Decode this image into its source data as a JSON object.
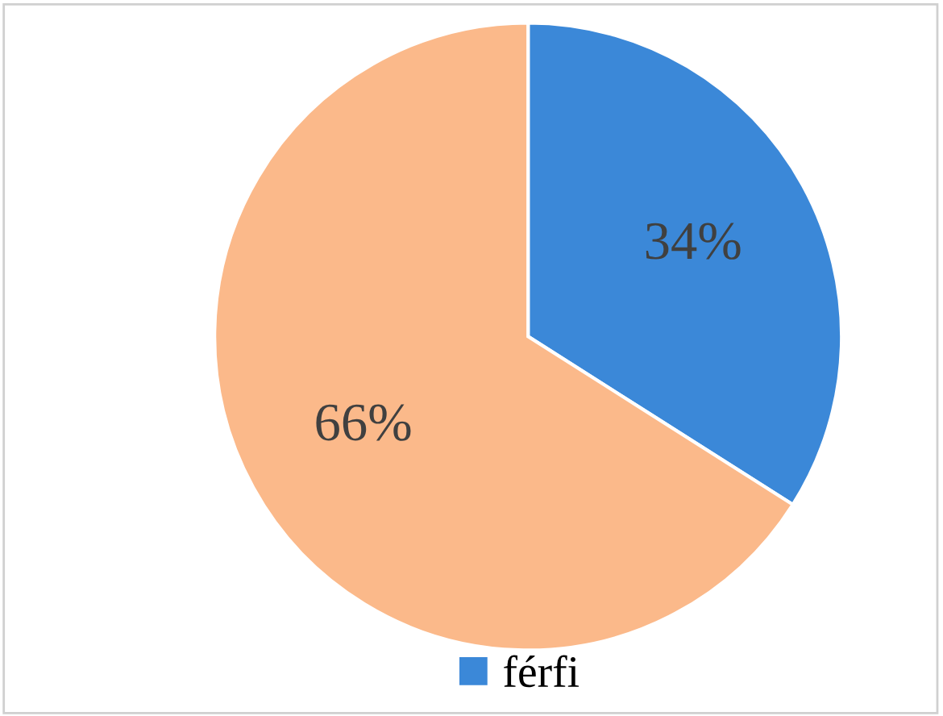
{
  "chart_data": {
    "type": "pie",
    "categories": [
      "férfi",
      null
    ],
    "values": [
      34,
      66
    ],
    "colors": [
      "#3b88d8",
      "#fbb98a"
    ],
    "value_labels": [
      "34%",
      "66%"
    ],
    "legend": "bottom"
  }
}
